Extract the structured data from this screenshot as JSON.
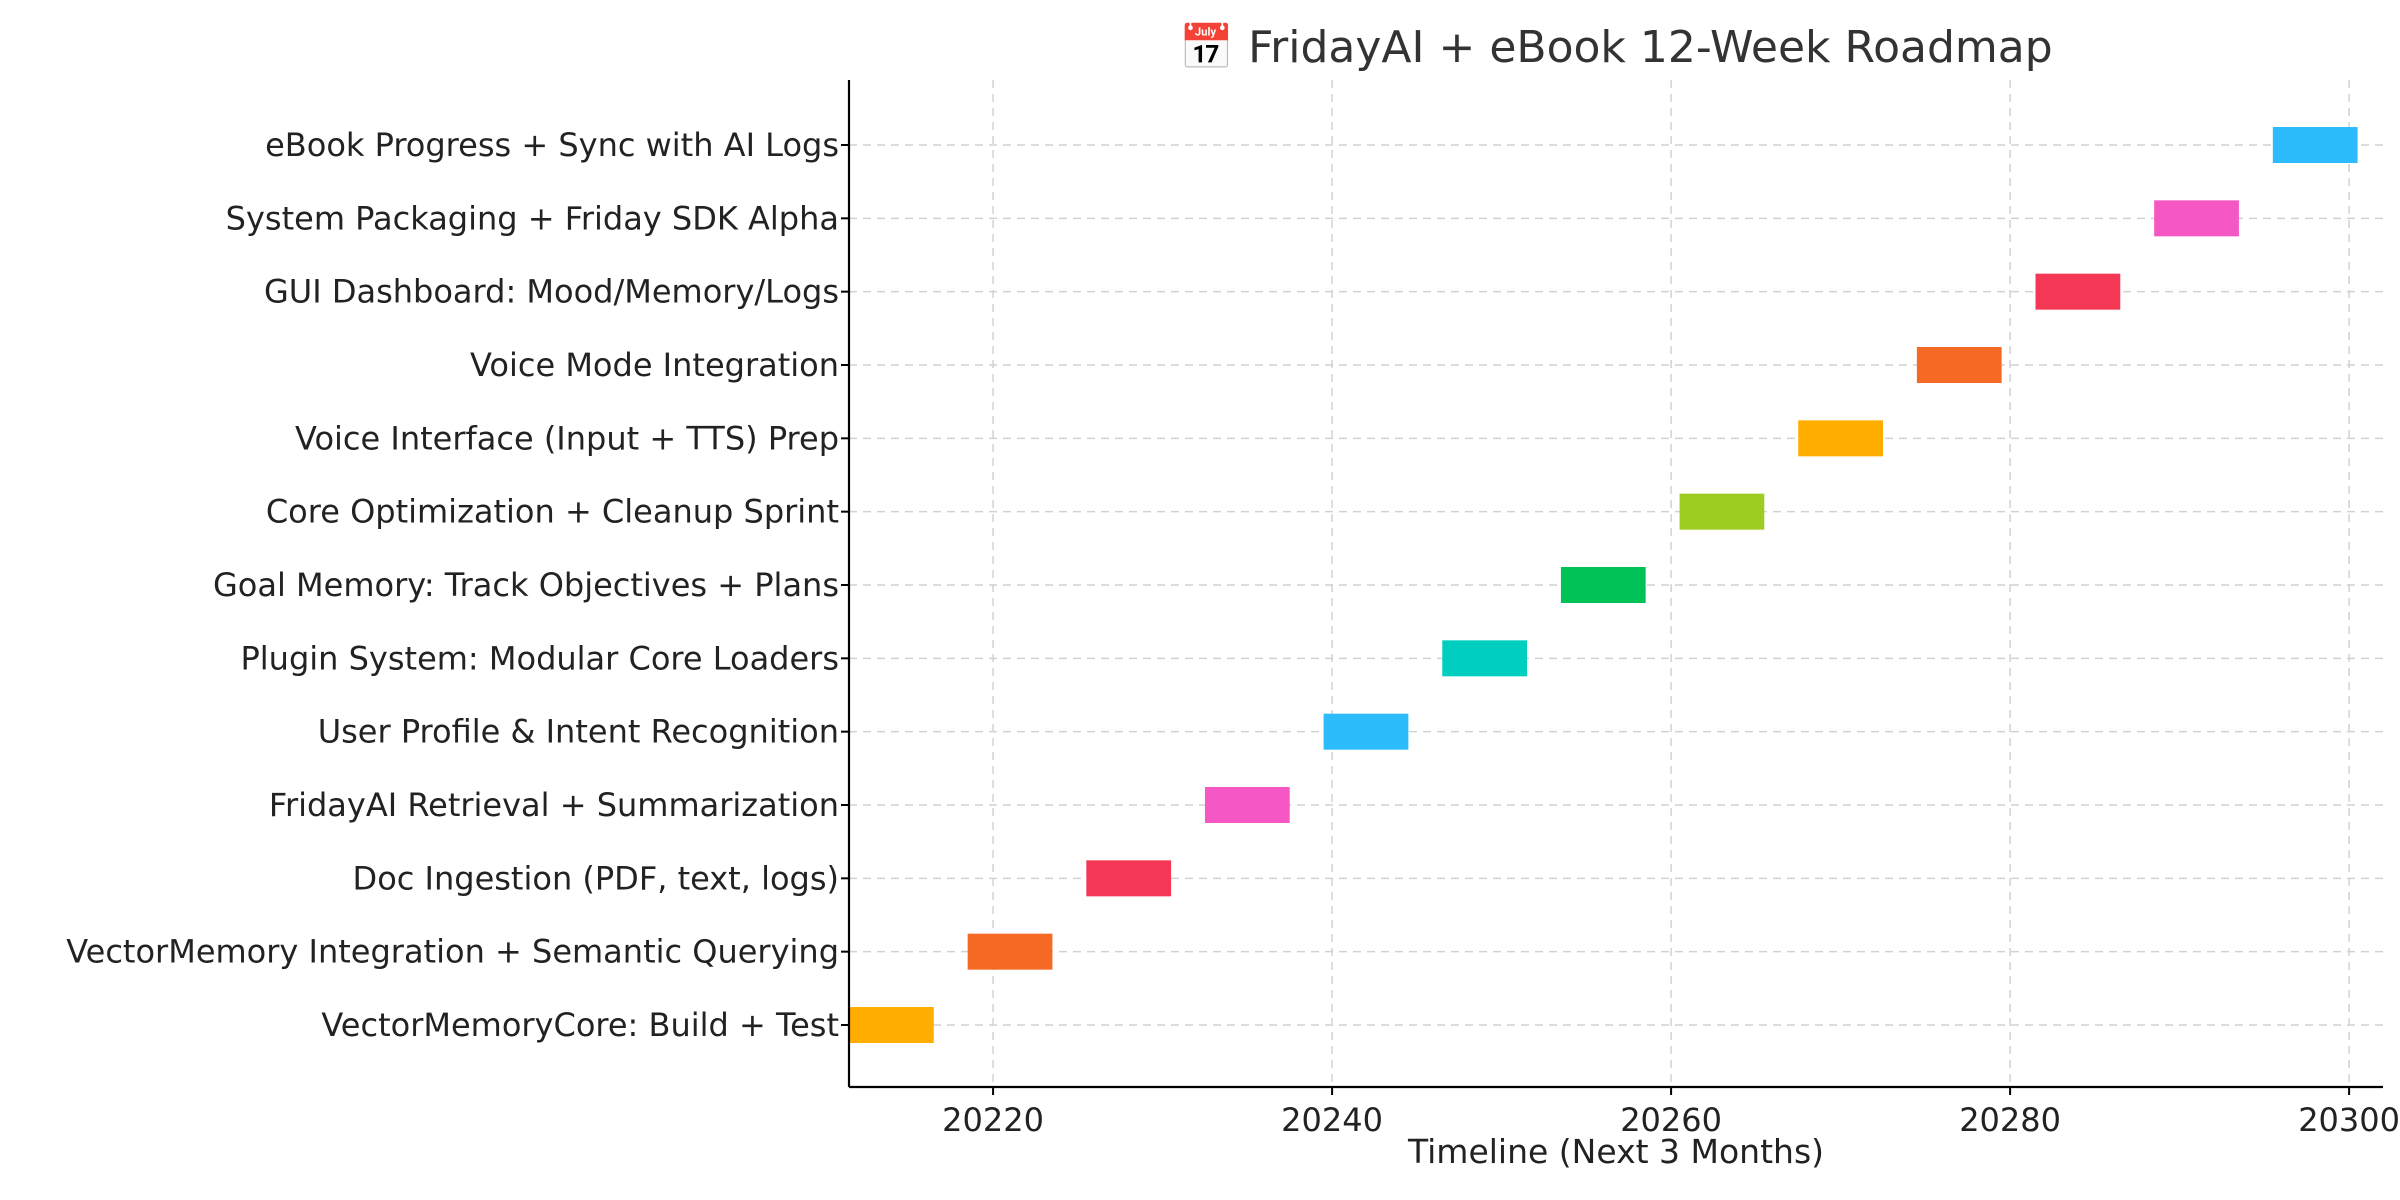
{
  "chart_data": {
    "type": "bar",
    "orientation": "horizontal",
    "title": "📅 FridayAI + eBook 12-Week Roadmap",
    "xlabel": "Timeline (Next 3 Months)",
    "ylabel": "",
    "xlim": [
      20211.5,
      20302
    ],
    "xticks": [
      20220,
      20240,
      20260,
      20280,
      20300
    ],
    "grid": true,
    "tasks": [
      {
        "label": "VectorMemoryCore: Build + Test",
        "start": 20211.5,
        "end": 20216.5,
        "color": "#FFAE00"
      },
      {
        "label": "VectorMemory Integration + Semantic Querying",
        "start": 20218.5,
        "end": 20223.5,
        "color": "#F46A25"
      },
      {
        "label": "Doc Ingestion (PDF, text, logs)",
        "start": 20225.5,
        "end": 20230.5,
        "color": "#F43755"
      },
      {
        "label": "FridayAI Retrieval + Summarization",
        "start": 20232.5,
        "end": 20237.5,
        "color": "#F558C4"
      },
      {
        "label": "User Profile & Intent Recognition",
        "start": 20239.5,
        "end": 20244.5,
        "color": "#2CBCFC"
      },
      {
        "label": "Plugin System: Modular Core Loaders",
        "start": 20246.5,
        "end": 20251.5,
        "color": "#00CFC0"
      },
      {
        "label": "Goal Memory: Track Objectives + Plans",
        "start": 20253.5,
        "end": 20258.5,
        "color": "#00C257"
      },
      {
        "label": "Core Optimization + Cleanup Sprint",
        "start": 20260.5,
        "end": 20265.5,
        "color": "#9ECC20"
      },
      {
        "label": "Voice Interface (Input + TTS) Prep",
        "start": 20267.5,
        "end": 20272.5,
        "color": "#FFAE00"
      },
      {
        "label": "Voice Mode Integration",
        "start": 20274.5,
        "end": 20279.5,
        "color": "#F46A25"
      },
      {
        "label": "GUI Dashboard: Mood/Memory/Logs",
        "start": 20281.5,
        "end": 20286.5,
        "color": "#F43755"
      },
      {
        "label": "System Packaging + Friday SDK Alpha",
        "start": 20288.5,
        "end": 20293.5,
        "color": "#F558C4"
      },
      {
        "label": "eBook Progress + Sync with AI Logs",
        "start": 20295.5,
        "end": 20300.5,
        "color": "#2CBCFC"
      }
    ]
  }
}
